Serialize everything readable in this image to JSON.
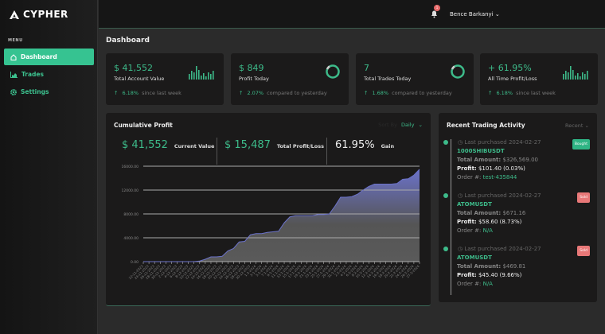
{
  "brand": {
    "name": "CYPHER"
  },
  "sidebar": {
    "menu_label": "MENU",
    "items": [
      {
        "label": "Dashboard",
        "icon": "home-icon",
        "active": true
      },
      {
        "label": "Trades",
        "icon": "chart-icon"
      },
      {
        "label": "Settings",
        "icon": "gear-icon"
      }
    ]
  },
  "topbar": {
    "notifications": "1",
    "user": "Bence Barkanyi"
  },
  "page": {
    "title": "Dashboard"
  },
  "stats": [
    {
      "value": "$ 41,552",
      "label": "Total Account Value",
      "change": "6.18%",
      "suffix": "since last week",
      "icon": "bars"
    },
    {
      "value": "$ 849",
      "label": "Profit Today",
      "change": "2.07%",
      "suffix": "compared to yesterday",
      "icon": "ring"
    },
    {
      "value": "7",
      "label": "Total Trades Today",
      "change": "1.68%",
      "suffix": "compared to yesterday",
      "icon": "ring"
    },
    {
      "value": "+ 61.95%",
      "label": "All Time Profit/Loss",
      "change": "6.18%",
      "suffix": "since last week",
      "icon": "bars"
    }
  ],
  "cumulative": {
    "title": "Cumulative Profit",
    "sort_label": "Sort By",
    "sort_value": "Daily",
    "current_value": "$ 41,552",
    "current_label": "Current Value",
    "pl_value": "$ 15,487",
    "pl_label": "Total Profit/Loss",
    "gain_value": "61.95%",
    "gain_label": "Gain"
  },
  "chart_data": {
    "type": "area",
    "ylim": [
      0,
      16000
    ],
    "yticks": [
      "0.00",
      "4000.00",
      "8000.00",
      "12000.00",
      "16000.00"
    ],
    "grid": true,
    "line_color": "#6b72c9",
    "x": [
      "22-11-2023",
      "24-11-2023",
      "26-11-2023",
      "28-11-2023",
      "30-11-2023",
      "2-12-2023",
      "4-12-2023",
      "6-12-2023",
      "8-12-2023",
      "10-12-2023",
      "12-12-2023",
      "14-12-2023",
      "16-12-2023",
      "18-12-2023",
      "20-12-2023",
      "22-12-2023",
      "24-12-2023",
      "26-12-2023",
      "28-12-2023",
      "30-12-2023",
      "1-1-2024",
      "3-1-2024",
      "5-1-2024",
      "7-1-2024",
      "9-1-2024",
      "11-1-2024",
      "13-1-2024",
      "15-1-2024",
      "17-1-2024",
      "19-1-2024",
      "21-1-2024",
      "23-1-2024",
      "25-1-2024",
      "27-1-2024",
      "29-1-2024",
      "31-1-2024",
      "2-2-2024",
      "4-2-2024",
      "6-2-2024",
      "8-2-2024",
      "10-2-2024",
      "12-2-2024",
      "14-2-2024",
      "16-2-2024",
      "18-2-2024",
      "20-2-2024",
      "22-2-2024",
      "24-2-2024",
      "26-2-2024",
      "27-2-2024"
    ],
    "values": [
      0,
      0,
      0,
      0,
      0,
      0,
      0,
      0,
      0,
      0,
      100,
      400,
      800,
      800,
      900,
      1800,
      2200,
      3300,
      3400,
      4500,
      4700,
      4700,
      4900,
      5000,
      5100,
      6500,
      7500,
      7700,
      7700,
      7700,
      7700,
      7900,
      7900,
      8000,
      9300,
      10800,
      10800,
      10900,
      11300,
      12000,
      12600,
      13000,
      13000,
      13000,
      13000,
      13100,
      13800,
      13900,
      14500,
      15487
    ]
  },
  "activity": {
    "title": "Recent Trading Activity",
    "filter": "Recent",
    "items": [
      {
        "date": "Last purchased 2024-02-27",
        "badge": "Bought",
        "symbol": "1000SHIBUSDT",
        "amount_label": "Total Amount:",
        "amount": "$326,569.00",
        "profit_label": "Profit:",
        "profit": "$101.40 (0.03%)",
        "order_label": "Order #:",
        "order": "test-435844"
      },
      {
        "date": "Last purchased 2024-02-27",
        "badge": "Sold",
        "symbol": "ATOMUSDT",
        "amount_label": "Total Amount:",
        "amount": "$671.16",
        "profit_label": "Profit:",
        "profit": "$58.60 (8.73%)",
        "order_label": "Order #:",
        "order": "N/A"
      },
      {
        "date": "Last purchased 2024-02-27",
        "badge": "Sold",
        "symbol": "ATOMUSDT",
        "amount_label": "Total Amount:",
        "amount": "$469.81",
        "profit_label": "Profit:",
        "profit": "$45.40 (9.66%)",
        "order_label": "Order #:",
        "order": "N/A"
      }
    ]
  },
  "colors": {
    "accent": "#36c391",
    "bought": "#2fb585",
    "sold": "#e87878",
    "bg": "#2b2b2b",
    "card": "#1b1a1a"
  }
}
